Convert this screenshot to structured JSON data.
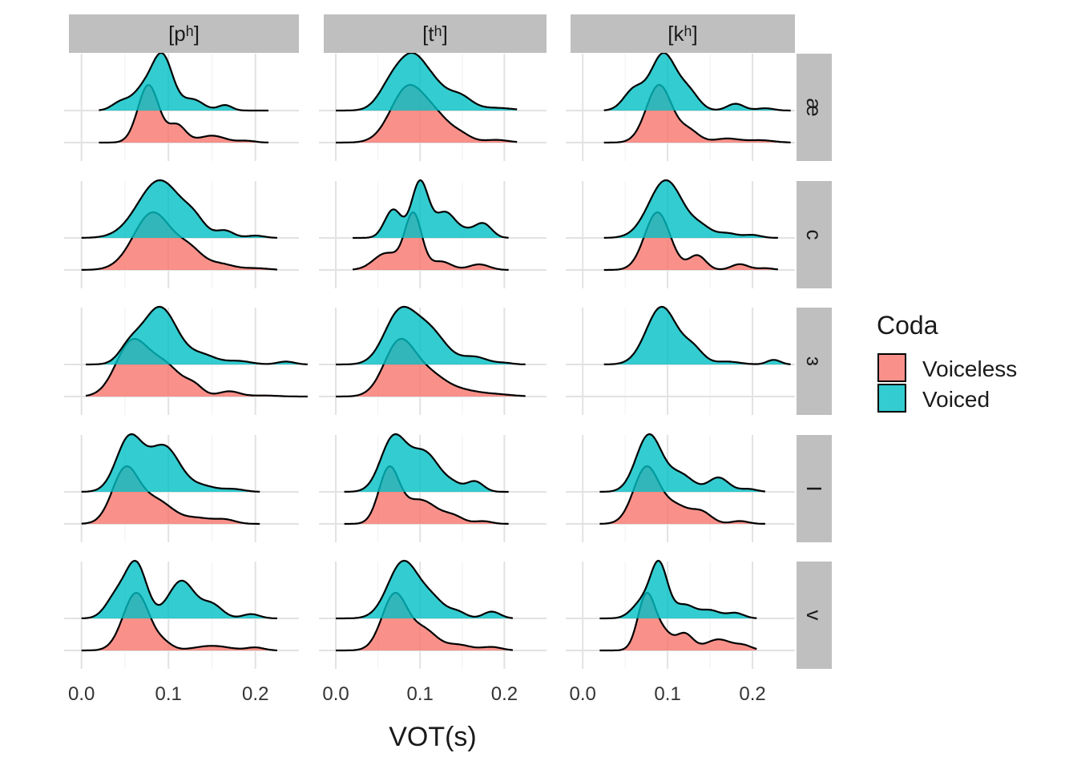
{
  "chart_data": {
    "type": "area",
    "subtype": "faceted ridgeline density",
    "xlabel": "VOT(s)",
    "ylabel": "",
    "xlim": [
      -0.02,
      0.25
    ],
    "xticks": [
      "0.0",
      "0.1",
      "0.2"
    ],
    "x_major": [
      0.0,
      0.1,
      0.2
    ],
    "x_minor": [
      0.05,
      0.15
    ],
    "columns": [
      "[pʰ]",
      "[tʰ]",
      "[kʰ]"
    ],
    "rows": [
      "æ",
      "c",
      "ɜ",
      "I",
      "v"
    ],
    "legend": {
      "title": "Coda",
      "items": [
        {
          "label": "Voiceless",
          "color": "#F8766D"
        },
        {
          "label": "Voiced",
          "color": "#00BFC4"
        }
      ]
    },
    "panels": [
      {
        "row": "æ",
        "col": "[pʰ]",
        "voiceless": {
          "range": [
            0.02,
            0.215
          ],
          "peaks": [
            [
              0.077,
              0.012,
              1.0
            ],
            [
              0.11,
              0.01,
              0.3
            ],
            [
              0.15,
              0.015,
              0.12
            ],
            [
              0.19,
              0.01,
              0.03
            ]
          ]
        },
        "voiced": {
          "range": [
            0.02,
            0.215
          ],
          "peaks": [
            [
              0.093,
              0.012,
              1.0
            ],
            [
              0.07,
              0.012,
              0.35
            ],
            [
              0.045,
              0.01,
              0.15
            ],
            [
              0.128,
              0.012,
              0.2
            ],
            [
              0.165,
              0.008,
              0.1
            ]
          ]
        }
      },
      {
        "row": "æ",
        "col": "[tʰ]",
        "voiceless": {
          "range": [
            0.0,
            0.215
          ],
          "peaks": [
            [
              0.085,
              0.02,
              1.0
            ],
            [
              0.12,
              0.018,
              0.4
            ],
            [
              0.15,
              0.012,
              0.1
            ],
            [
              0.19,
              0.015,
              0.05
            ]
          ]
        },
        "voiced": {
          "range": [
            0.0,
            0.215
          ],
          "peaks": [
            [
              0.093,
              0.018,
              1.0
            ],
            [
              0.065,
              0.015,
              0.4
            ],
            [
              0.145,
              0.015,
              0.3
            ],
            [
              0.12,
              0.012,
              0.2
            ],
            [
              0.19,
              0.02,
              0.05
            ]
          ]
        }
      },
      {
        "row": "æ",
        "col": "[kʰ]",
        "voiceless": {
          "range": [
            0.025,
            0.245
          ],
          "peaks": [
            [
              0.09,
              0.015,
              1.0
            ],
            [
              0.125,
              0.012,
              0.2
            ],
            [
              0.17,
              0.015,
              0.07
            ],
            [
              0.21,
              0.015,
              0.04
            ]
          ]
        },
        "voiced": {
          "range": [
            0.025,
            0.245
          ],
          "peaks": [
            [
              0.095,
              0.015,
              1.0
            ],
            [
              0.06,
              0.012,
              0.35
            ],
            [
              0.125,
              0.012,
              0.3
            ],
            [
              0.18,
              0.01,
              0.12
            ],
            [
              0.215,
              0.01,
              0.04
            ]
          ]
        }
      },
      {
        "row": "c",
        "col": "[pʰ]",
        "voiceless": {
          "range": [
            0.0,
            0.225
          ],
          "peaks": [
            [
              0.082,
              0.022,
              1.0
            ],
            [
              0.125,
              0.015,
              0.3
            ],
            [
              0.16,
              0.015,
              0.1
            ],
            [
              0.2,
              0.015,
              0.03
            ]
          ]
        },
        "voiced": {
          "range": [
            0.0,
            0.225
          ],
          "peaks": [
            [
              0.09,
              0.025,
              1.0
            ],
            [
              0.13,
              0.012,
              0.2
            ],
            [
              0.165,
              0.01,
              0.12
            ],
            [
              0.2,
              0.01,
              0.04
            ]
          ]
        }
      },
      {
        "row": "c",
        "col": "[tʰ]",
        "voiceless": {
          "range": [
            0.02,
            0.205
          ],
          "peaks": [
            [
              0.092,
              0.01,
              1.0
            ],
            [
              0.06,
              0.015,
              0.3
            ],
            [
              0.125,
              0.012,
              0.15
            ],
            [
              0.17,
              0.012,
              0.1
            ]
          ]
        },
        "voiced": {
          "range": [
            0.02,
            0.205
          ],
          "peaks": [
            [
              0.1,
              0.01,
              1.0
            ],
            [
              0.068,
              0.01,
              0.5
            ],
            [
              0.13,
              0.012,
              0.45
            ],
            [
              0.175,
              0.01,
              0.25
            ],
            [
              0.155,
              0.01,
              0.1
            ]
          ]
        }
      },
      {
        "row": "c",
        "col": "[kʰ]",
        "voiceless": {
          "range": [
            0.025,
            0.23
          ],
          "peaks": [
            [
              0.088,
              0.015,
              1.0
            ],
            [
              0.135,
              0.01,
              0.25
            ],
            [
              0.185,
              0.01,
              0.1
            ],
            [
              0.215,
              0.01,
              0.03
            ]
          ]
        },
        "voiced": {
          "range": [
            0.025,
            0.23
          ],
          "peaks": [
            [
              0.098,
              0.02,
              1.0
            ],
            [
              0.14,
              0.012,
              0.15
            ],
            [
              0.17,
              0.012,
              0.08
            ],
            [
              0.2,
              0.01,
              0.05
            ]
          ]
        }
      },
      {
        "row": "ɜ",
        "col": "[pʰ]",
        "voiceless": {
          "range": [
            0.005,
            0.26
          ],
          "peaks": [
            [
              0.057,
              0.018,
              1.0
            ],
            [
              0.095,
              0.02,
              0.6
            ],
            [
              0.13,
              0.01,
              0.15
            ],
            [
              0.17,
              0.012,
              0.1
            ],
            [
              0.21,
              0.015,
              0.02
            ]
          ]
        },
        "voiced": {
          "range": [
            0.005,
            0.26
          ],
          "peaks": [
            [
              0.09,
              0.02,
              1.0
            ],
            [
              0.055,
              0.012,
              0.25
            ],
            [
              0.14,
              0.015,
              0.15
            ],
            [
              0.18,
              0.015,
              0.06
            ],
            [
              0.235,
              0.01,
              0.05
            ]
          ]
        }
      },
      {
        "row": "ɜ",
        "col": "[tʰ]",
        "voiceless": {
          "range": [
            0.0,
            0.225
          ],
          "peaks": [
            [
              0.075,
              0.018,
              1.0
            ],
            [
              0.11,
              0.02,
              0.4
            ],
            [
              0.15,
              0.02,
              0.1
            ],
            [
              0.19,
              0.02,
              0.04
            ]
          ]
        },
        "voiced": {
          "range": [
            0.0,
            0.225
          ],
          "peaks": [
            [
              0.075,
              0.018,
              1.0
            ],
            [
              0.11,
              0.02,
              0.7
            ],
            [
              0.165,
              0.015,
              0.15
            ],
            [
              0.2,
              0.01,
              0.03
            ]
          ]
        }
      },
      {
        "row": "ɜ",
        "col": "[kʰ]",
        "voiceless": null,
        "voiced": {
          "range": [
            0.025,
            0.245
          ],
          "peaks": [
            [
              0.093,
              0.018,
              1.0
            ],
            [
              0.13,
              0.012,
              0.25
            ],
            [
              0.17,
              0.015,
              0.05
            ],
            [
              0.225,
              0.008,
              0.08
            ]
          ]
        }
      },
      {
        "row": "I",
        "col": "[pʰ]",
        "voiceless": {
          "range": [
            0.0,
            0.205
          ],
          "peaks": [
            [
              0.05,
              0.015,
              1.0
            ],
            [
              0.085,
              0.02,
              0.45
            ],
            [
              0.135,
              0.015,
              0.1
            ],
            [
              0.165,
              0.012,
              0.08
            ]
          ]
        },
        "voiced": {
          "range": [
            0.0,
            0.205
          ],
          "peaks": [
            [
              0.055,
              0.015,
              1.0
            ],
            [
              0.095,
              0.018,
              0.85
            ],
            [
              0.14,
              0.015,
              0.1
            ],
            [
              0.175,
              0.012,
              0.05
            ]
          ]
        }
      },
      {
        "row": "I",
        "col": "[tʰ]",
        "voiceless": {
          "range": [
            0.01,
            0.205
          ],
          "peaks": [
            [
              0.063,
              0.012,
              1.0
            ],
            [
              0.1,
              0.02,
              0.45
            ],
            [
              0.14,
              0.012,
              0.12
            ],
            [
              0.175,
              0.01,
              0.05
            ]
          ]
        },
        "voiced": {
          "range": [
            0.01,
            0.205
          ],
          "peaks": [
            [
              0.068,
              0.015,
              1.0
            ],
            [
              0.105,
              0.018,
              0.75
            ],
            [
              0.165,
              0.01,
              0.2
            ],
            [
              0.14,
              0.01,
              0.1
            ]
          ]
        }
      },
      {
        "row": "I",
        "col": "[kʰ]",
        "voiceless": {
          "range": [
            0.02,
            0.215
          ],
          "peaks": [
            [
              0.075,
              0.015,
              1.0
            ],
            [
              0.11,
              0.015,
              0.3
            ],
            [
              0.14,
              0.012,
              0.2
            ],
            [
              0.185,
              0.01,
              0.05
            ]
          ]
        },
        "voiced": {
          "range": [
            0.02,
            0.215
          ],
          "peaks": [
            [
              0.078,
              0.015,
              1.0
            ],
            [
              0.115,
              0.015,
              0.3
            ],
            [
              0.16,
              0.012,
              0.25
            ],
            [
              0.195,
              0.01,
              0.05
            ]
          ]
        }
      },
      {
        "row": "v",
        "col": "[pʰ]",
        "voiceless": {
          "range": [
            0.0,
            0.225
          ],
          "peaks": [
            [
              0.063,
              0.015,
              1.0
            ],
            [
              0.095,
              0.01,
              0.1
            ],
            [
              0.15,
              0.02,
              0.08
            ],
            [
              0.2,
              0.01,
              0.05
            ]
          ]
        },
        "voiced": {
          "range": [
            0.0,
            0.225
          ],
          "peaks": [
            [
              0.063,
              0.012,
              1.0
            ],
            [
              0.04,
              0.012,
              0.4
            ],
            [
              0.115,
              0.015,
              0.7
            ],
            [
              0.15,
              0.012,
              0.25
            ],
            [
              0.195,
              0.01,
              0.08
            ]
          ]
        }
      },
      {
        "row": "v",
        "col": "[tʰ]",
        "voiceless": {
          "range": [
            0.0,
            0.21
          ],
          "peaks": [
            [
              0.07,
              0.015,
              1.0
            ],
            [
              0.105,
              0.015,
              0.35
            ],
            [
              0.145,
              0.015,
              0.1
            ],
            [
              0.185,
              0.012,
              0.06
            ]
          ]
        },
        "voiced": {
          "range": [
            0.0,
            0.21
          ],
          "peaks": [
            [
              0.08,
              0.018,
              1.0
            ],
            [
              0.115,
              0.015,
              0.3
            ],
            [
              0.145,
              0.01,
              0.1
            ],
            [
              0.185,
              0.01,
              0.12
            ]
          ]
        }
      },
      {
        "row": "v",
        "col": "[kʰ]",
        "voiceless": {
          "range": [
            0.02,
            0.205
          ],
          "peaks": [
            [
              0.075,
              0.01,
              1.0
            ],
            [
              0.095,
              0.01,
              0.3
            ],
            [
              0.12,
              0.01,
              0.3
            ],
            [
              0.16,
              0.015,
              0.2
            ],
            [
              0.19,
              0.01,
              0.08
            ]
          ]
        },
        "voiced": {
          "range": [
            0.02,
            0.205
          ],
          "peaks": [
            [
              0.09,
              0.01,
              1.0
            ],
            [
              0.07,
              0.012,
              0.3
            ],
            [
              0.12,
              0.012,
              0.25
            ],
            [
              0.15,
              0.012,
              0.15
            ],
            [
              0.18,
              0.01,
              0.1
            ]
          ]
        }
      }
    ]
  }
}
